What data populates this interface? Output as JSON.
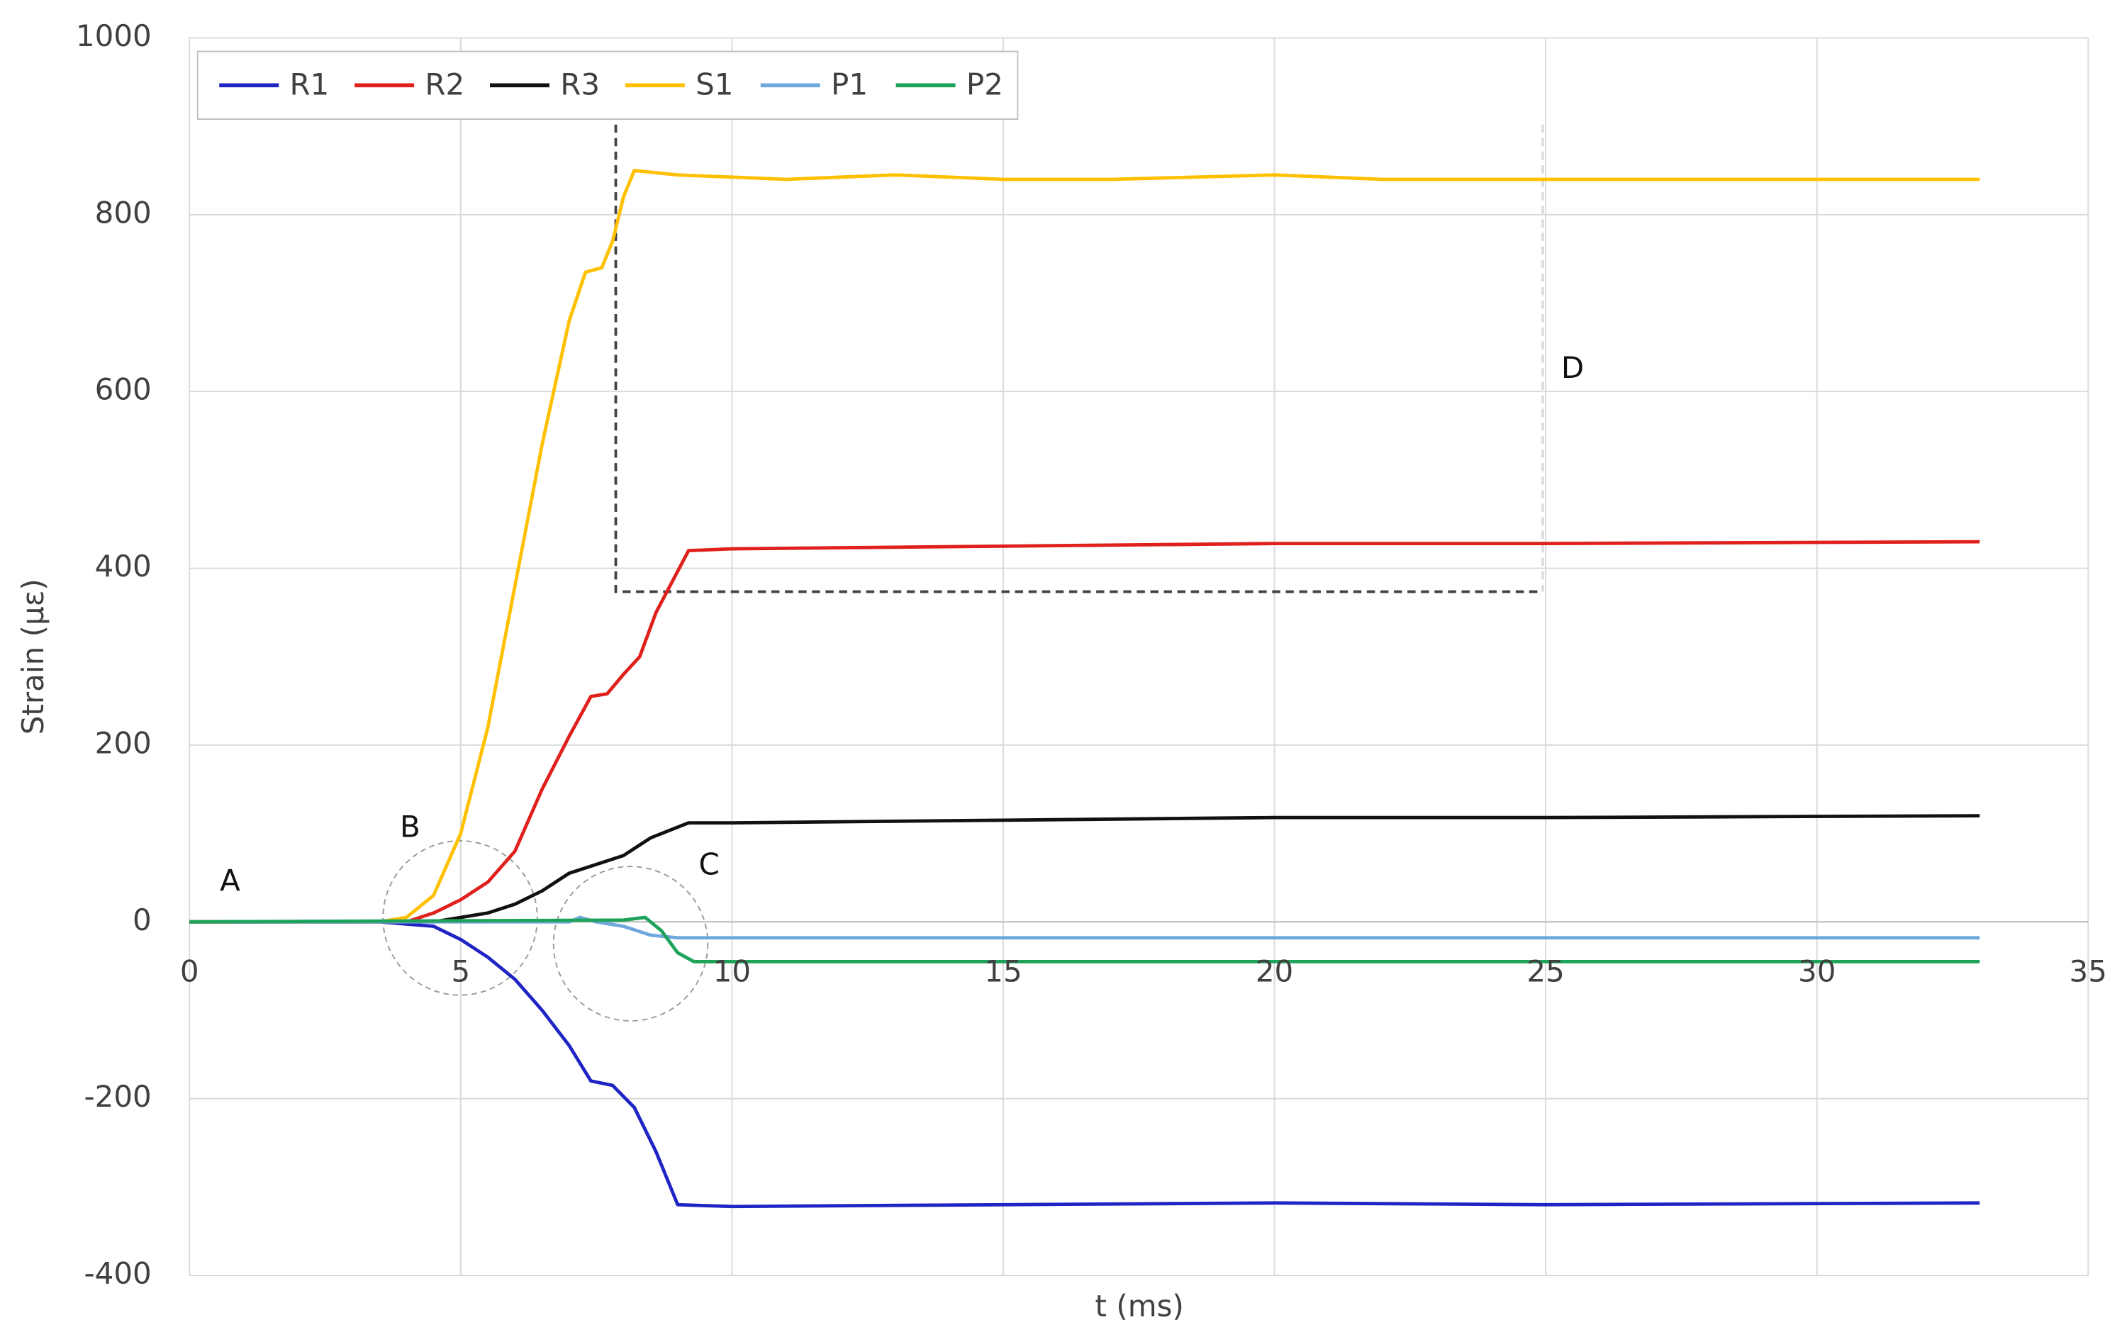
{
  "chart_data": {
    "type": "line",
    "x_label": "t (ms)",
    "y_label": "Strain (με)",
    "xlim": [
      0,
      35
    ],
    "xticks": [
      0,
      5,
      10,
      15,
      20,
      25,
      30,
      35
    ],
    "ylim": [
      -400,
      1000
    ],
    "yticks": [
      -400,
      -200,
      0,
      200,
      400,
      600,
      800,
      1000
    ],
    "grid": true,
    "legend": "top-left",
    "annotations": [
      "A",
      "B",
      "C",
      "D"
    ],
    "series": [
      {
        "name": "R1",
        "color": "#1f24c4",
        "x": [
          0,
          3.5,
          4.5,
          5,
          5.5,
          6,
          6.5,
          7,
          7.4,
          7.8,
          8.2,
          8.6,
          9,
          10,
          15,
          20,
          25,
          33
        ],
        "values": [
          0,
          0,
          -5,
          -20,
          -40,
          -65,
          -100,
          -140,
          -180,
          -185,
          -210,
          -260,
          -320,
          -322,
          -320,
          -318,
          -320,
          -318
        ]
      },
      {
        "name": "R2",
        "color": "#e0201c",
        "x": [
          0,
          4,
          4.5,
          5,
          5.5,
          6,
          6.5,
          7,
          7.4,
          7.7,
          8,
          8.3,
          8.6,
          9.2,
          10,
          15,
          20,
          25,
          33
        ],
        "values": [
          0,
          0,
          10,
          25,
          45,
          80,
          150,
          210,
          255,
          258,
          280,
          300,
          350,
          420,
          422,
          425,
          428,
          428,
          430
        ]
      },
      {
        "name": "R3",
        "color": "#111111",
        "x": [
          0,
          4.5,
          5,
          5.5,
          6,
          6.5,
          7,
          7.5,
          8,
          8.5,
          9.2,
          10,
          15,
          20,
          25,
          33
        ],
        "values": [
          0,
          0,
          5,
          10,
          20,
          35,
          55,
          65,
          75,
          95,
          112,
          112,
          115,
          118,
          118,
          120
        ]
      },
      {
        "name": "S1",
        "color": "#ffc000",
        "x": [
          0,
          3.5,
          4,
          4.5,
          5,
          5.5,
          6,
          6.5,
          7,
          7.3,
          7.6,
          7.8,
          8,
          8.2,
          9,
          11,
          13,
          15,
          17,
          20,
          22,
          25,
          33
        ],
        "values": [
          0,
          0,
          5,
          30,
          100,
          220,
          380,
          540,
          680,
          735,
          740,
          770,
          820,
          850,
          845,
          840,
          845,
          840,
          840,
          845,
          840,
          840,
          840
        ]
      },
      {
        "name": "P1",
        "color": "#6fa8dc",
        "x": [
          0,
          7,
          7.2,
          7.5,
          8,
          8.5,
          9,
          15,
          33
        ],
        "values": [
          0,
          0,
          5,
          0,
          -5,
          -15,
          -18,
          -18,
          -18
        ]
      },
      {
        "name": "P2",
        "color": "#1ea35a",
        "x": [
          0,
          8,
          8.4,
          8.7,
          9,
          9.3,
          10,
          33
        ],
        "values": [
          0,
          2,
          5,
          -10,
          -35,
          -45,
          -45,
          -45
        ]
      }
    ]
  }
}
